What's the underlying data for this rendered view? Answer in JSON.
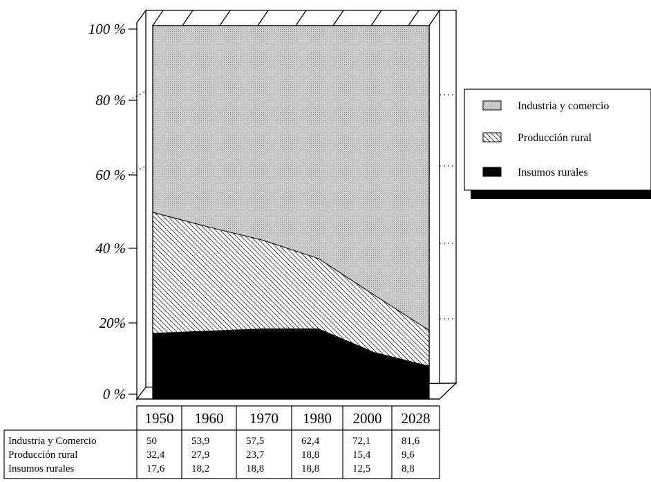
{
  "chart_data": {
    "type": "area",
    "stacked": true,
    "percent": true,
    "categories": [
      "1950",
      "1960",
      "1970",
      "1980",
      "2000",
      "2028"
    ],
    "series": [
      {
        "name": "Insumos rurales",
        "row_label": "Insumos rurales",
        "values": [
          17.6,
          18.2,
          18.8,
          18.8,
          12.5,
          8.8
        ],
        "fill": "#000000"
      },
      {
        "name": "Producción rural",
        "row_label": "Producción rural",
        "values": [
          32.4,
          27.9,
          23.7,
          18.8,
          15.4,
          9.6
        ],
        "fill": "hatch"
      },
      {
        "name": "Industria y comercio",
        "row_label": "Industria y Comercio",
        "values": [
          50,
          53.9,
          57.5,
          62.4,
          72.1,
          81.6
        ],
        "fill": "#c8c8c8"
      }
    ],
    "table_row_order": [
      2,
      1,
      0
    ],
    "legend_order": [
      2,
      1,
      0
    ],
    "ylim": [
      0,
      100
    ],
    "yticks": [
      "0 %",
      "20%",
      "40 %",
      "60 %",
      "80 %",
      "100 %"
    ],
    "legend_position": "right",
    "grid": false
  }
}
